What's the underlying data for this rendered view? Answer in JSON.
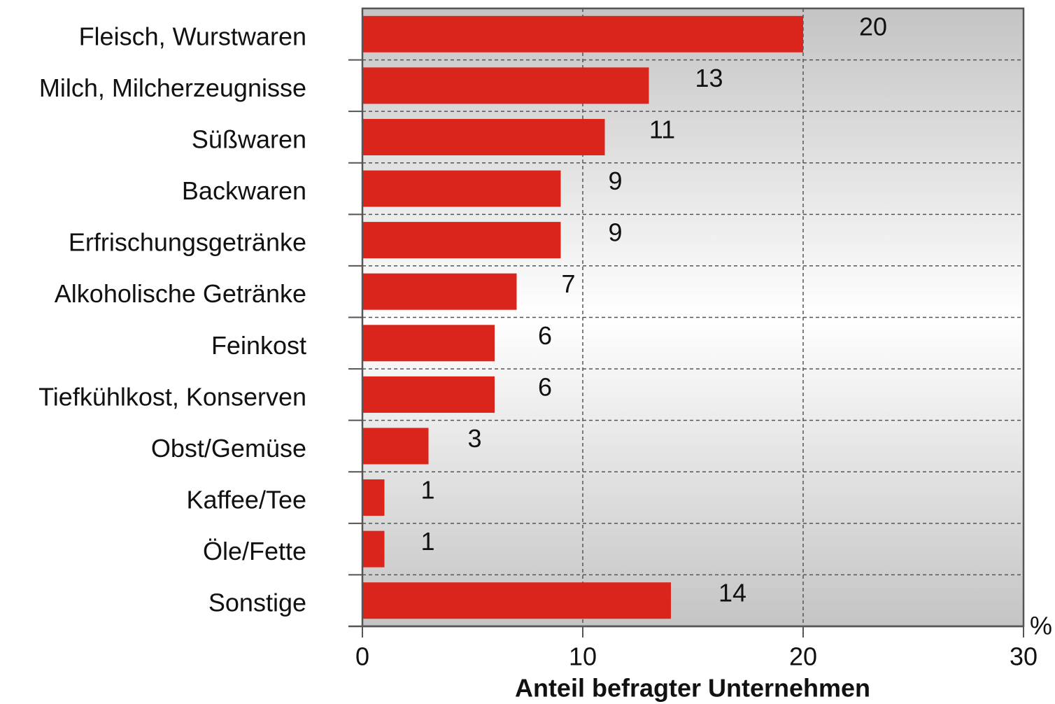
{
  "chart_data": {
    "type": "barh",
    "categories": [
      "Fleisch, Wurstwaren",
      "Milch, Milcherzeugnisse",
      "Süßwaren",
      "Backwaren",
      "Erfrischungsgetränke",
      "Alkoholische Getränke",
      "Feinkost",
      "Tiefkühlkost, Konserven",
      "Obst/Gemüse",
      "Kaffee/Tee",
      "Öle/Fette",
      "Sonstige"
    ],
    "values": [
      20,
      13,
      11,
      9,
      9,
      7,
      6,
      6,
      3,
      1,
      1,
      14
    ],
    "color": "#d9251c",
    "xlim": [
      0,
      30
    ],
    "xticks": [
      0,
      10,
      20,
      30
    ],
    "x_unit": "%",
    "xlabel": "Anteil befragter Unternehmen",
    "grid": true
  }
}
